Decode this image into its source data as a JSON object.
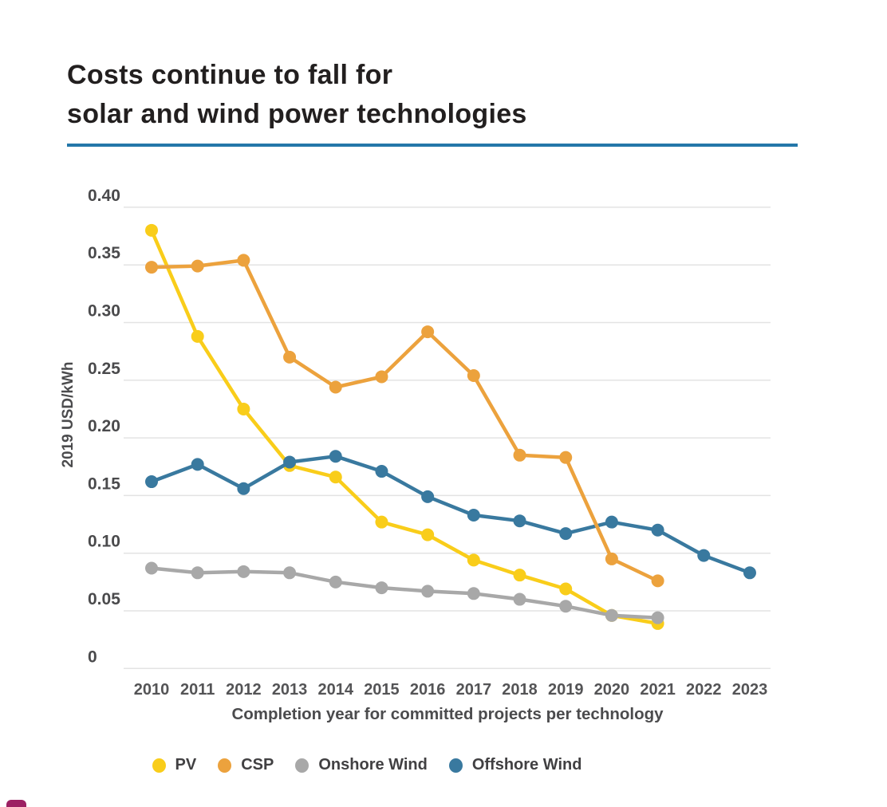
{
  "title": {
    "line1": "Costs continue to fall for",
    "line2": "solar and wind power technologies"
  },
  "accent_rule_color": "#2477a9",
  "logo_fragment_color": "#9c2063",
  "chart_data": {
    "type": "line",
    "title": "Costs continue to fall for solar and wind power technologies",
    "xlabel": "Completion year for committed projects per technology",
    "ylabel": "2019 USD/kWh",
    "x": [
      2010,
      2011,
      2012,
      2013,
      2014,
      2015,
      2016,
      2017,
      2018,
      2019,
      2020,
      2021,
      2022,
      2023
    ],
    "series": [
      {
        "name": "PV",
        "color": "#f9cd1a",
        "values": [
          0.38,
          0.288,
          0.225,
          0.176,
          0.166,
          0.127,
          0.116,
          0.094,
          0.081,
          0.069,
          0.046,
          0.039,
          null,
          null
        ]
      },
      {
        "name": "CSP",
        "color": "#eca23d",
        "values": [
          0.348,
          0.349,
          0.354,
          0.27,
          0.244,
          0.253,
          0.292,
          0.254,
          0.185,
          0.183,
          0.095,
          0.076,
          null,
          null
        ]
      },
      {
        "name": "Onshore Wind",
        "color": "#a8a8a8",
        "values": [
          0.087,
          0.083,
          0.084,
          0.083,
          0.075,
          0.07,
          0.067,
          0.065,
          0.06,
          0.054,
          0.046,
          0.044,
          null,
          null
        ]
      },
      {
        "name": "Offshore Wind",
        "color": "#39799f",
        "values": [
          0.162,
          0.177,
          0.156,
          0.179,
          0.184,
          0.171,
          0.149,
          0.133,
          0.128,
          0.117,
          0.127,
          0.12,
          0.098,
          0.083
        ]
      }
    ],
    "yticks": [
      0.4,
      0.35,
      0.3,
      0.25,
      0.2,
      0.15,
      0.1,
      0.05,
      0
    ],
    "ylim": [
      0,
      0.4
    ],
    "grid": true,
    "legend_position": "bottom"
  }
}
